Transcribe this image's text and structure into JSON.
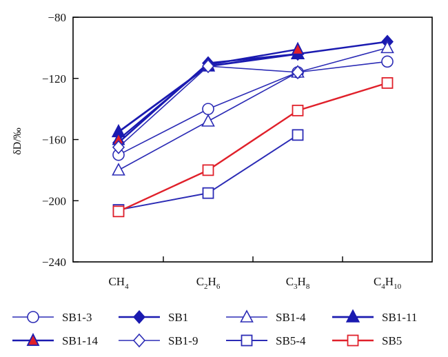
{
  "chart_data": {
    "type": "line",
    "ylabel": "δD/‰",
    "ylim": [
      -240,
      -80
    ],
    "yticks": [
      -80,
      -120,
      -160,
      -200,
      -240
    ],
    "grid": false,
    "legend_placement": "bottom",
    "categories": [
      {
        "base": "CH",
        "sub": "4"
      },
      {
        "base": "C",
        "sub": "2",
        "base2": "H",
        "sub2": "6"
      },
      {
        "base": "C",
        "sub": "3",
        "base2": "H",
        "sub2": "8"
      },
      {
        "base": "C",
        "sub": "4",
        "base2": "H",
        "sub2": "10"
      }
    ],
    "series": [
      {
        "name": "SB1-3",
        "values": [
          -170,
          -140,
          -116,
          -109
        ],
        "marker": "circle-open",
        "color": "#2b2bb5",
        "marker_fill": "#ffffff",
        "width": 1.6
      },
      {
        "name": "SB1",
        "values": [
          -162,
          -110,
          -104,
          -96
        ],
        "marker": "diamond-filled",
        "color": "#1a1ab0",
        "marker_fill": "#1a1ab0",
        "width": 2.4
      },
      {
        "name": "SB1-4",
        "values": [
          -180,
          -148,
          -116,
          -100
        ],
        "marker": "triangle-open",
        "color": "#2b2bb5",
        "marker_fill": "#ffffff",
        "width": 1.6
      },
      {
        "name": "SB1-11",
        "values": [
          -155,
          -112,
          -104,
          null
        ],
        "marker": "triangle-filled",
        "color": "#1a1ab0",
        "marker_fill": "#1a1ab0",
        "width": 2.8
      },
      {
        "name": "SB1-14",
        "values": [
          -160,
          -111,
          -101,
          null
        ],
        "marker": "triangle-red",
        "color": "#1a1ab0",
        "marker_fill": "#e0202a",
        "width": 2.4
      },
      {
        "name": "SB1-9",
        "values": [
          -165,
          -112,
          -116,
          null
        ],
        "marker": "diamond-open",
        "color": "#2b2bb5",
        "marker_fill": "#ffffff",
        "width": 1.6
      },
      {
        "name": "SB5-4",
        "values": [
          -206,
          -195,
          -157,
          null
        ],
        "marker": "square-open",
        "color": "#2b2bb5",
        "marker_fill": "#ffffff",
        "width": 2.0
      },
      {
        "name": "SB5",
        "values": [
          -207,
          -180,
          -141,
          -123
        ],
        "marker": "square-red",
        "color": "#e0202a",
        "marker_fill": "#ffffff",
        "width": 2.4
      }
    ]
  }
}
